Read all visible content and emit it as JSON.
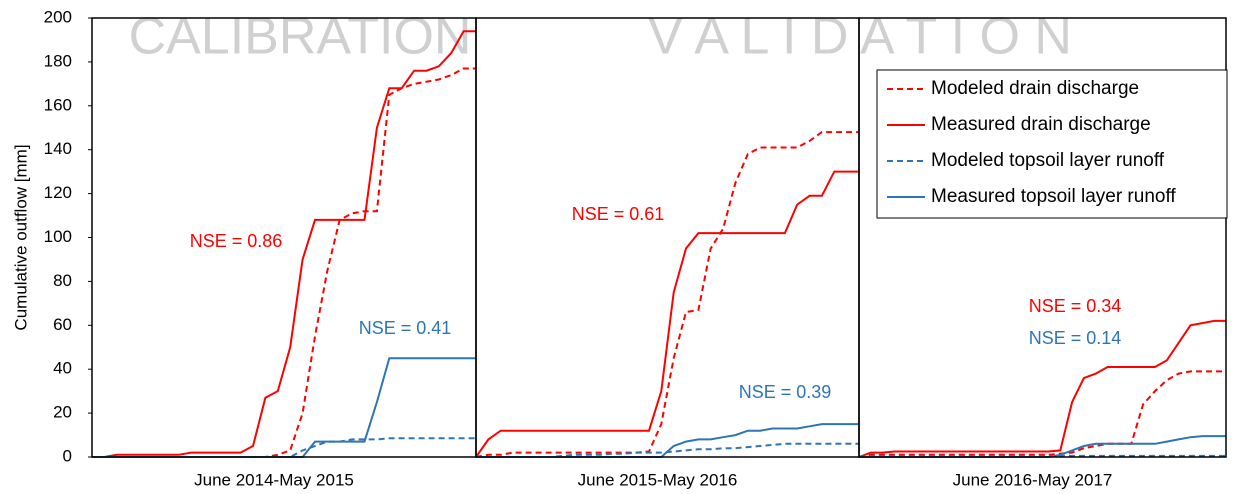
{
  "chart_data": [
    {
      "type": "line",
      "title": "CALIBRATION",
      "xlabel": "June 2014-May 2015",
      "ylabel": "Cumulative outflow [mm]",
      "ylim": [
        0,
        200
      ],
      "yticks": [
        0,
        20,
        40,
        60,
        80,
        100,
        120,
        140,
        160,
        180,
        200
      ],
      "series": [
        {
          "color": "#ff0000",
          "dash": true,
          "values": [
            0,
            0,
            0,
            0,
            0,
            0,
            0,
            0,
            0,
            0,
            0,
            0,
            0,
            0,
            0,
            1,
            3,
            20,
            55,
            85,
            108,
            111,
            112,
            112,
            165,
            168,
            170,
            171,
            172,
            174,
            177,
            177
          ]
        },
        {
          "color": "#ff0000",
          "dash": false,
          "values": [
            0,
            0,
            1,
            1,
            1,
            1,
            1,
            1,
            2,
            2,
            2,
            2,
            2,
            5,
            27,
            30,
            50,
            90,
            108,
            108,
            108,
            108,
            108,
            150,
            168,
            168,
            176,
            176,
            178,
            184,
            194,
            194
          ]
        },
        {
          "color": "#2e75b6",
          "dash": true,
          "values": [
            0,
            0,
            0,
            0,
            0,
            0,
            0,
            0,
            0,
            0,
            0,
            0,
            0,
            0,
            0,
            0,
            0,
            3,
            5,
            7,
            7,
            8,
            8,
            8,
            8.5,
            8.5,
            8.5,
            8.5,
            8.5,
            8.5,
            8.5,
            8.5
          ]
        },
        {
          "color": "#2e75b6",
          "dash": false,
          "values": [
            0,
            0,
            0,
            0,
            0,
            0,
            0,
            0,
            0,
            0,
            0,
            0,
            0,
            0,
            0,
            0,
            0,
            0,
            7,
            7,
            7,
            7,
            7,
            25,
            45,
            45,
            45,
            45,
            45,
            45,
            45,
            45
          ]
        }
      ],
      "annotations": [
        {
          "text": "NSE = 0.86",
          "color": "#ff0000"
        },
        {
          "text": "NSE = 0.41",
          "color": "#2e75b6"
        }
      ]
    },
    {
      "type": "line",
      "title": "V A L I D A T I O N",
      "xlabel": "June 2015-May 2016",
      "series": [
        {
          "color": "#ff0000",
          "dash": true,
          "values": [
            0,
            1,
            1,
            2,
            2,
            2,
            2,
            2,
            2,
            2,
            2,
            2,
            2,
            2,
            2.5,
            15,
            45,
            66,
            67,
            95,
            104,
            125,
            138,
            141,
            141,
            141,
            141,
            144,
            148,
            148,
            148,
            148
          ]
        },
        {
          "color": "#ff0000",
          "dash": false,
          "values": [
            0,
            8,
            12,
            12,
            12,
            12,
            12,
            12,
            12,
            12,
            12,
            12,
            12,
            12,
            12,
            30,
            75,
            95,
            102,
            102,
            102,
            102,
            102,
            102,
            102,
            102,
            115,
            119,
            119,
            130,
            130,
            130
          ]
        },
        {
          "color": "#2e75b6",
          "dash": true,
          "values": [
            0,
            0,
            0,
            0,
            0,
            0,
            0,
            0.5,
            1,
            1,
            1,
            1.5,
            1.5,
            2,
            2,
            2,
            2.5,
            3,
            3.5,
            3.5,
            4,
            4,
            4.5,
            5,
            5.5,
            6,
            6,
            6,
            6,
            6,
            6,
            6
          ]
        },
        {
          "color": "#2e75b6",
          "dash": false,
          "values": [
            0,
            0,
            0,
            0,
            0,
            0,
            0,
            0,
            0,
            0,
            0,
            0,
            0,
            0,
            0,
            0,
            5,
            7,
            8,
            8,
            9,
            10,
            12,
            12,
            13,
            13,
            13,
            14,
            15,
            15,
            15,
            15
          ]
        }
      ],
      "annotations": [
        {
          "text": "NSE = 0.61",
          "color": "#ff0000"
        },
        {
          "text": "NSE = 0.39",
          "color": "#2e75b6"
        }
      ]
    },
    {
      "type": "line",
      "xlabel": "June 2016-May 2017",
      "legend": "upper right",
      "series": [
        {
          "name": "Modeled drain discharge",
          "color": "#ff0000",
          "dash": true,
          "values": [
            0,
            1,
            1,
            1,
            1,
            1,
            1,
            1,
            1,
            1,
            1,
            1,
            1,
            1,
            1,
            1,
            1,
            1.5,
            2,
            4,
            5,
            6,
            6,
            6,
            24,
            30,
            35,
            38,
            39,
            39,
            39,
            39
          ]
        },
        {
          "name": "Measured drain discharge",
          "color": "#ff0000",
          "dash": false,
          "values": [
            0,
            2,
            2,
            2.5,
            2.5,
            2.5,
            2.5,
            2.5,
            2.5,
            2.5,
            2.5,
            2.5,
            2.5,
            2.5,
            2.5,
            2.5,
            2.5,
            3,
            25,
            36,
            38,
            41,
            41,
            41,
            41,
            41,
            44,
            52,
            60,
            61,
            62,
            62
          ]
        },
        {
          "name": "Modeled topsoil layer runoff",
          "color": "#2e75b6",
          "dash": true,
          "values": [
            0,
            0.5,
            0.5,
            0.5,
            0.5,
            0.5,
            0.5,
            0.5,
            0.5,
            0.5,
            0.5,
            0.5,
            0.5,
            0.5,
            0.5,
            0.5,
            0.5,
            0.5,
            0.5,
            0.5,
            0.5,
            0.5,
            0.5,
            0.5,
            0.5,
            0.5,
            0.5,
            0.5,
            0.5,
            0.5,
            0.5,
            0.5
          ]
        },
        {
          "name": "Measured topsoil layer runoff",
          "color": "#2e75b6",
          "dash": false,
          "values": [
            0,
            0,
            0,
            0,
            0,
            0,
            0,
            0,
            0,
            0,
            0,
            0,
            0,
            0,
            0,
            0,
            0,
            1,
            3,
            5,
            6,
            6,
            6,
            6,
            6,
            6,
            7,
            8,
            9,
            9.5,
            9.5,
            9.5
          ]
        }
      ],
      "annotations": [
        {
          "text": "NSE = 0.34",
          "color": "#ff0000"
        },
        {
          "text": "NSE = 0.14",
          "color": "#2e75b6"
        }
      ]
    }
  ]
}
